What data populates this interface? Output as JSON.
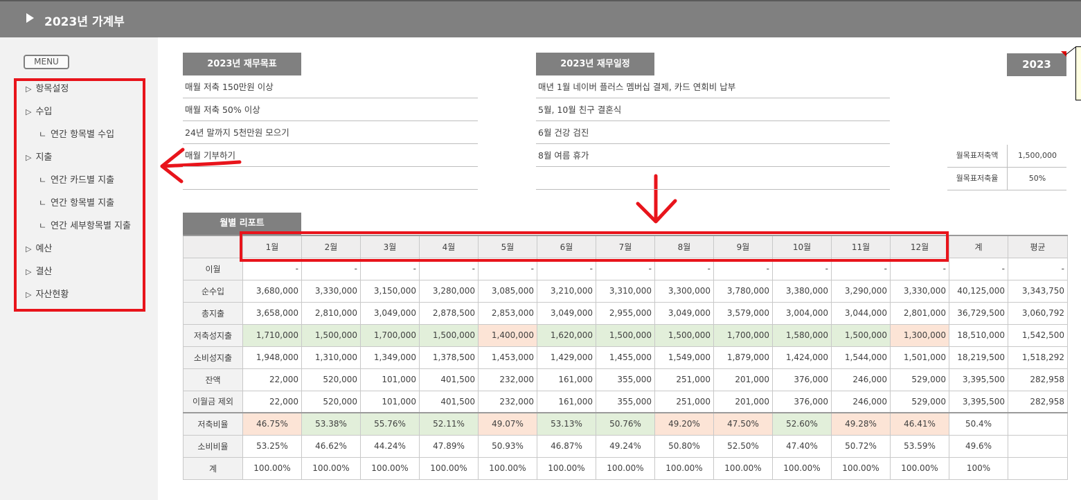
{
  "header": {
    "title": "2023년 가계부"
  },
  "menu": {
    "button_label": "MENU",
    "items": [
      {
        "label": "항목설정",
        "marker": "▷"
      },
      {
        "label": "수입",
        "marker": "▷"
      },
      {
        "label": "연간 항목별 수입",
        "marker": "ㄴ"
      },
      {
        "label": "지출",
        "marker": "▷"
      },
      {
        "label": "연간 카드별 지출",
        "marker": "ㄴ"
      },
      {
        "label": "연간 항목별 지출",
        "marker": "ㄴ"
      },
      {
        "label": "연간 세부항목별 지출",
        "marker": "ㄴ"
      },
      {
        "label": "예산",
        "marker": "▷"
      },
      {
        "label": "결산",
        "marker": "▷"
      },
      {
        "label": "자산현황",
        "marker": "▷"
      }
    ]
  },
  "goals": {
    "title": "2023년 재무목표",
    "items": [
      "매월 저축 150만원 이상",
      "매월 저축 50% 이상",
      "24년 말까지 5천만원 모으기",
      "매월 기부하기",
      ""
    ]
  },
  "schedule": {
    "title": "2023년 재무일정",
    "items": [
      "매년 1월 네이버 플러스 멤버십 결제, 카드 연회비 납부",
      "5월, 10월 친구 결혼식",
      "6월 건강 검진",
      "8월 여름 휴가",
      ""
    ]
  },
  "year": "2023",
  "targets": [
    {
      "label": "월목표저축액",
      "value": "1,500,000"
    },
    {
      "label": "월목표저축율",
      "value": "50%"
    }
  ],
  "report": {
    "title": "월별 리포트",
    "columns": [
      "1월",
      "2월",
      "3월",
      "4월",
      "5월",
      "6월",
      "7월",
      "8월",
      "9월",
      "10월",
      "11월",
      "12월",
      "계",
      "평균"
    ],
    "rows": [
      {
        "label": "이월",
        "values": [
          "-",
          "-",
          "-",
          "-",
          "-",
          "-",
          "-",
          "-",
          "-",
          "-",
          "-",
          "-",
          "-",
          "-"
        ]
      },
      {
        "label": "순수입",
        "values": [
          "3,680,000",
          "3,330,000",
          "3,150,000",
          "3,280,000",
          "3,085,000",
          "3,210,000",
          "3,310,000",
          "3,300,000",
          "3,780,000",
          "3,380,000",
          "3,290,000",
          "3,330,000",
          "40,125,000",
          "3,343,750"
        ]
      },
      {
        "label": "총지출",
        "values": [
          "3,658,000",
          "2,810,000",
          "3,049,000",
          "2,878,500",
          "2,853,000",
          "3,049,000",
          "2,955,000",
          "3,049,000",
          "3,579,000",
          "3,004,000",
          "3,044,000",
          "2,801,000",
          "36,729,500",
          "3,060,792"
        ]
      },
      {
        "label": "저축성지출",
        "values": [
          "1,710,000",
          "1,500,000",
          "1,700,000",
          "1,500,000",
          "1,400,000",
          "1,620,000",
          "1,500,000",
          "1,500,000",
          "1,700,000",
          "1,580,000",
          "1,500,000",
          "1,300,000",
          "18,510,000",
          "1,542,500"
        ],
        "highlight": [
          "g",
          "g",
          "g",
          "g",
          "o",
          "g",
          "g",
          "g",
          "g",
          "g",
          "g",
          "o",
          "",
          ""
        ]
      },
      {
        "label": "소비성지출",
        "values": [
          "1,948,000",
          "1,310,000",
          "1,349,000",
          "1,378,500",
          "1,453,000",
          "1,429,000",
          "1,455,000",
          "1,549,000",
          "1,879,000",
          "1,424,000",
          "1,544,000",
          "1,501,000",
          "18,219,500",
          "1,518,292"
        ]
      },
      {
        "label": "잔액",
        "values": [
          "22,000",
          "520,000",
          "101,000",
          "401,500",
          "232,000",
          "161,000",
          "355,000",
          "251,000",
          "201,000",
          "376,000",
          "246,000",
          "529,000",
          "3,395,500",
          "282,958"
        ]
      },
      {
        "label": "이월금 제외",
        "values": [
          "22,000",
          "520,000",
          "101,000",
          "401,500",
          "232,000",
          "161,000",
          "355,000",
          "251,000",
          "201,000",
          "376,000",
          "246,000",
          "529,000",
          "3,395,500",
          "282,958"
        ]
      },
      {
        "label": "저축비율",
        "values": [
          "46.75%",
          "53.38%",
          "55.76%",
          "52.11%",
          "49.07%",
          "53.13%",
          "50.76%",
          "49.20%",
          "47.50%",
          "52.60%",
          "49.28%",
          "46.41%",
          "50.4%",
          ""
        ],
        "highlight": [
          "o",
          "g",
          "g",
          "g",
          "o",
          "g",
          "g",
          "o",
          "o",
          "g",
          "o",
          "o",
          "",
          ""
        ],
        "pct": true,
        "sep": true
      },
      {
        "label": "소비비율",
        "values": [
          "53.25%",
          "46.62%",
          "44.24%",
          "47.89%",
          "50.93%",
          "46.87%",
          "49.24%",
          "50.80%",
          "52.50%",
          "47.40%",
          "50.72%",
          "53.59%",
          "49.6%",
          ""
        ],
        "pct": true
      },
      {
        "label": "계",
        "values": [
          "100.00%",
          "100.00%",
          "100.00%",
          "100.00%",
          "100.00%",
          "100.00%",
          "100.00%",
          "100.00%",
          "100.00%",
          "100.00%",
          "100.00%",
          "100.00%",
          "100%",
          ""
        ],
        "pct": true
      }
    ]
  }
}
